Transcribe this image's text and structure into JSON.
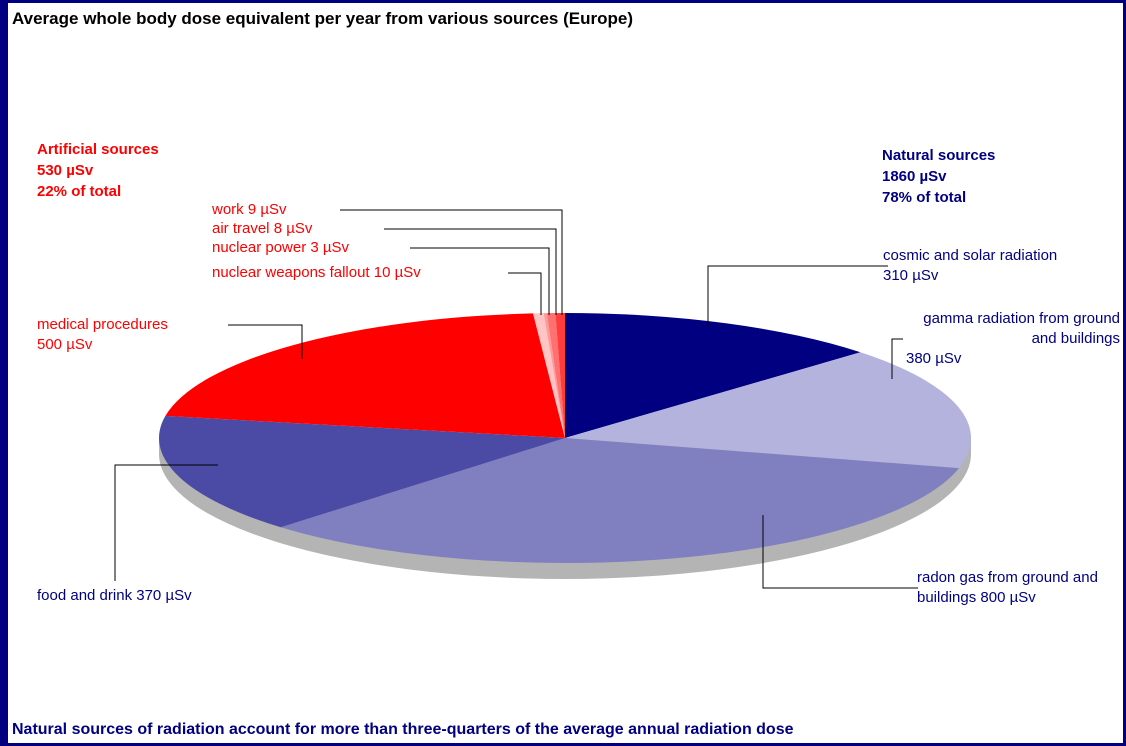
{
  "chart_data": {
    "type": "pie",
    "title": "Average whole body dose equivalent per year from various sources (Europe)",
    "footer": "Natural sources of radiation account for more than three-quarters of the average annual radiation dose",
    "categories": [
      "cosmic and solar radiation",
      "gamma radiation from ground and buildings",
      "radon gas from ground and buildings",
      "food and drink",
      "medical procedures",
      "nuclear weapons fallout",
      "nuclear power",
      "air travel",
      "work"
    ],
    "values": [
      310,
      380,
      800,
      370,
      500,
      10,
      3,
      8,
      9
    ],
    "value_labels": [
      "310 µSv",
      "380 µSv",
      "800 µSv",
      "370 µSv",
      "500 µSv",
      "10 µSv",
      "3 µSv",
      "8 µSv",
      "9 µSv"
    ],
    "colors": [
      "#000080",
      "#b3b3dd",
      "#8080c0",
      "#4b4ba6",
      "#ff0000",
      "#ffc4c4",
      "#ff9a9a",
      "#ff7070",
      "#ff3b3b"
    ],
    "label_colors": [
      "#000080",
      "#000080",
      "#000080",
      "#000080",
      "#ff0000",
      "#ff0000",
      "#ff0000",
      "#ff0000",
      "#ff0000"
    ],
    "groups": [
      {
        "name": "Artificial sources",
        "value_label": "530 µSv",
        "share_label": "22% of total",
        "color": "#ff0000"
      },
      {
        "name": "Natural sources",
        "value_label": "1860 µSv",
        "share_label": "78% of total",
        "color": "#000080"
      }
    ]
  }
}
